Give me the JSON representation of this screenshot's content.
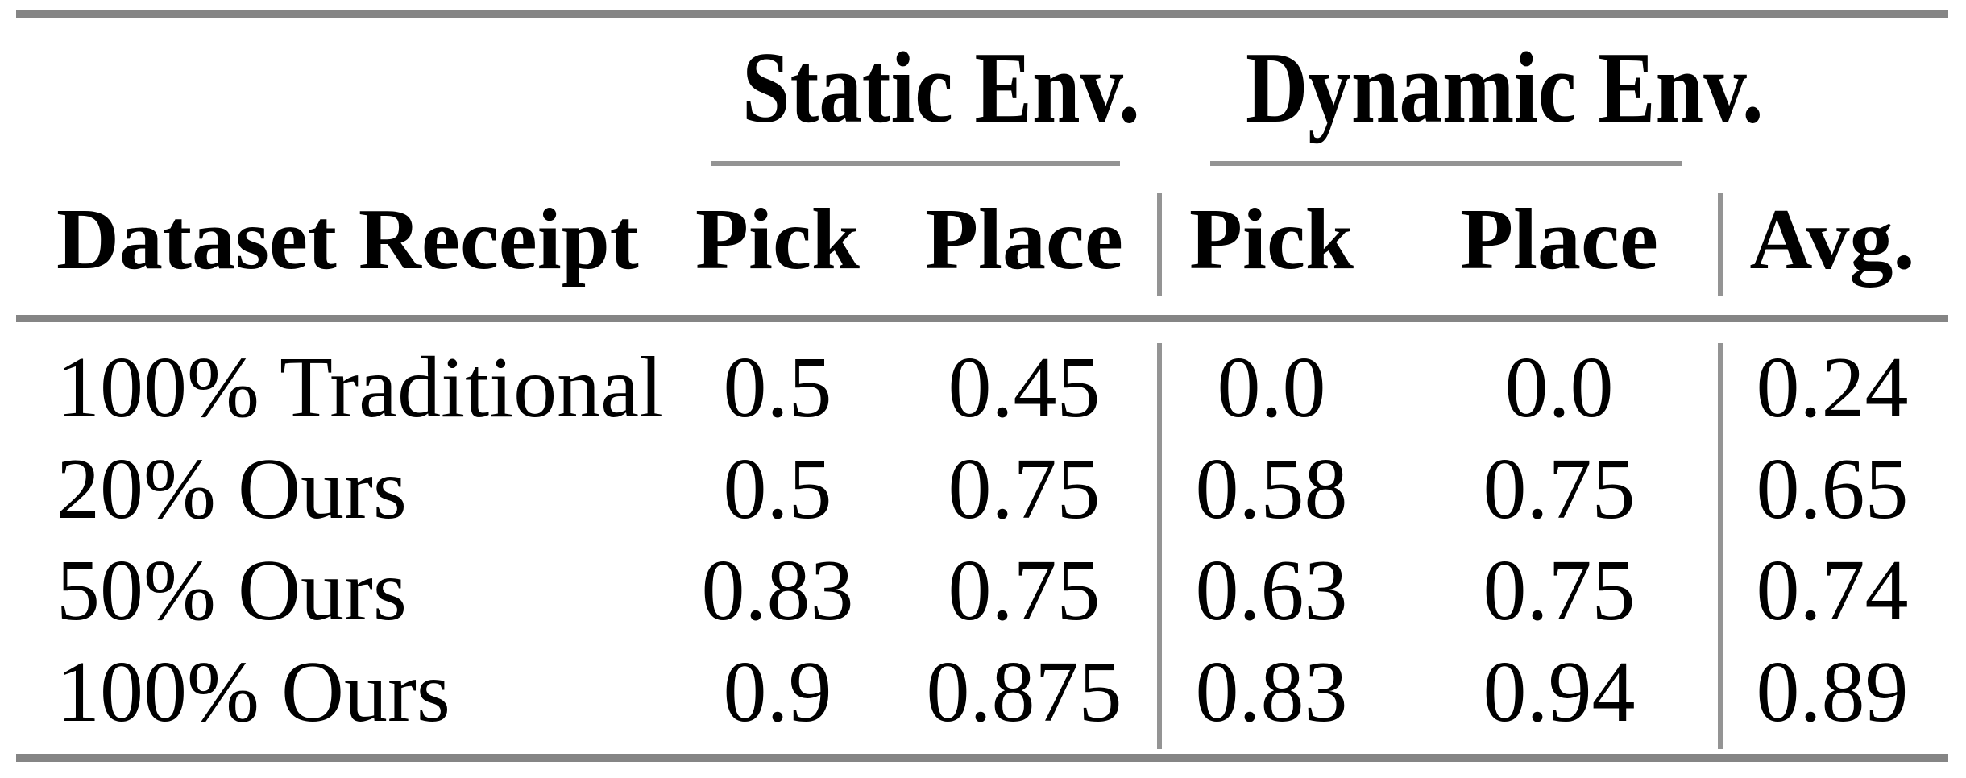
{
  "table": {
    "group_headers": {
      "static": "Static Env.",
      "dynamic": "Dynamic Env."
    },
    "column_headers": {
      "dataset_receipt": "Dataset Receipt",
      "static_pick": "Pick",
      "static_place": "Place",
      "dynamic_pick": "Pick",
      "dynamic_place": "Place",
      "avg": "Avg."
    },
    "rows": [
      {
        "dataset_receipt": "100% Traditional",
        "static_pick": "0.5",
        "static_place": "0.45",
        "dynamic_pick": "0.0",
        "dynamic_place": "0.0",
        "avg": "0.24"
      },
      {
        "dataset_receipt": "20% Ours",
        "static_pick": "0.5",
        "static_place": "0.75",
        "dynamic_pick": "0.58",
        "dynamic_place": "0.75",
        "avg": "0.65"
      },
      {
        "dataset_receipt": "50% Ours",
        "static_pick": "0.83",
        "static_place": "0.75",
        "dynamic_pick": "0.63",
        "dynamic_place": "0.75",
        "avg": "0.74"
      },
      {
        "dataset_receipt": "100% Ours",
        "static_pick": "0.9",
        "static_place": "0.875",
        "dynamic_pick": "0.83",
        "dynamic_place": "0.94",
        "avg": "0.89"
      }
    ]
  },
  "theme": {
    "background": "#ffffff",
    "text_color": "#000000",
    "heavy_rule_color": "#858585",
    "light_rule_color": "#949494"
  }
}
